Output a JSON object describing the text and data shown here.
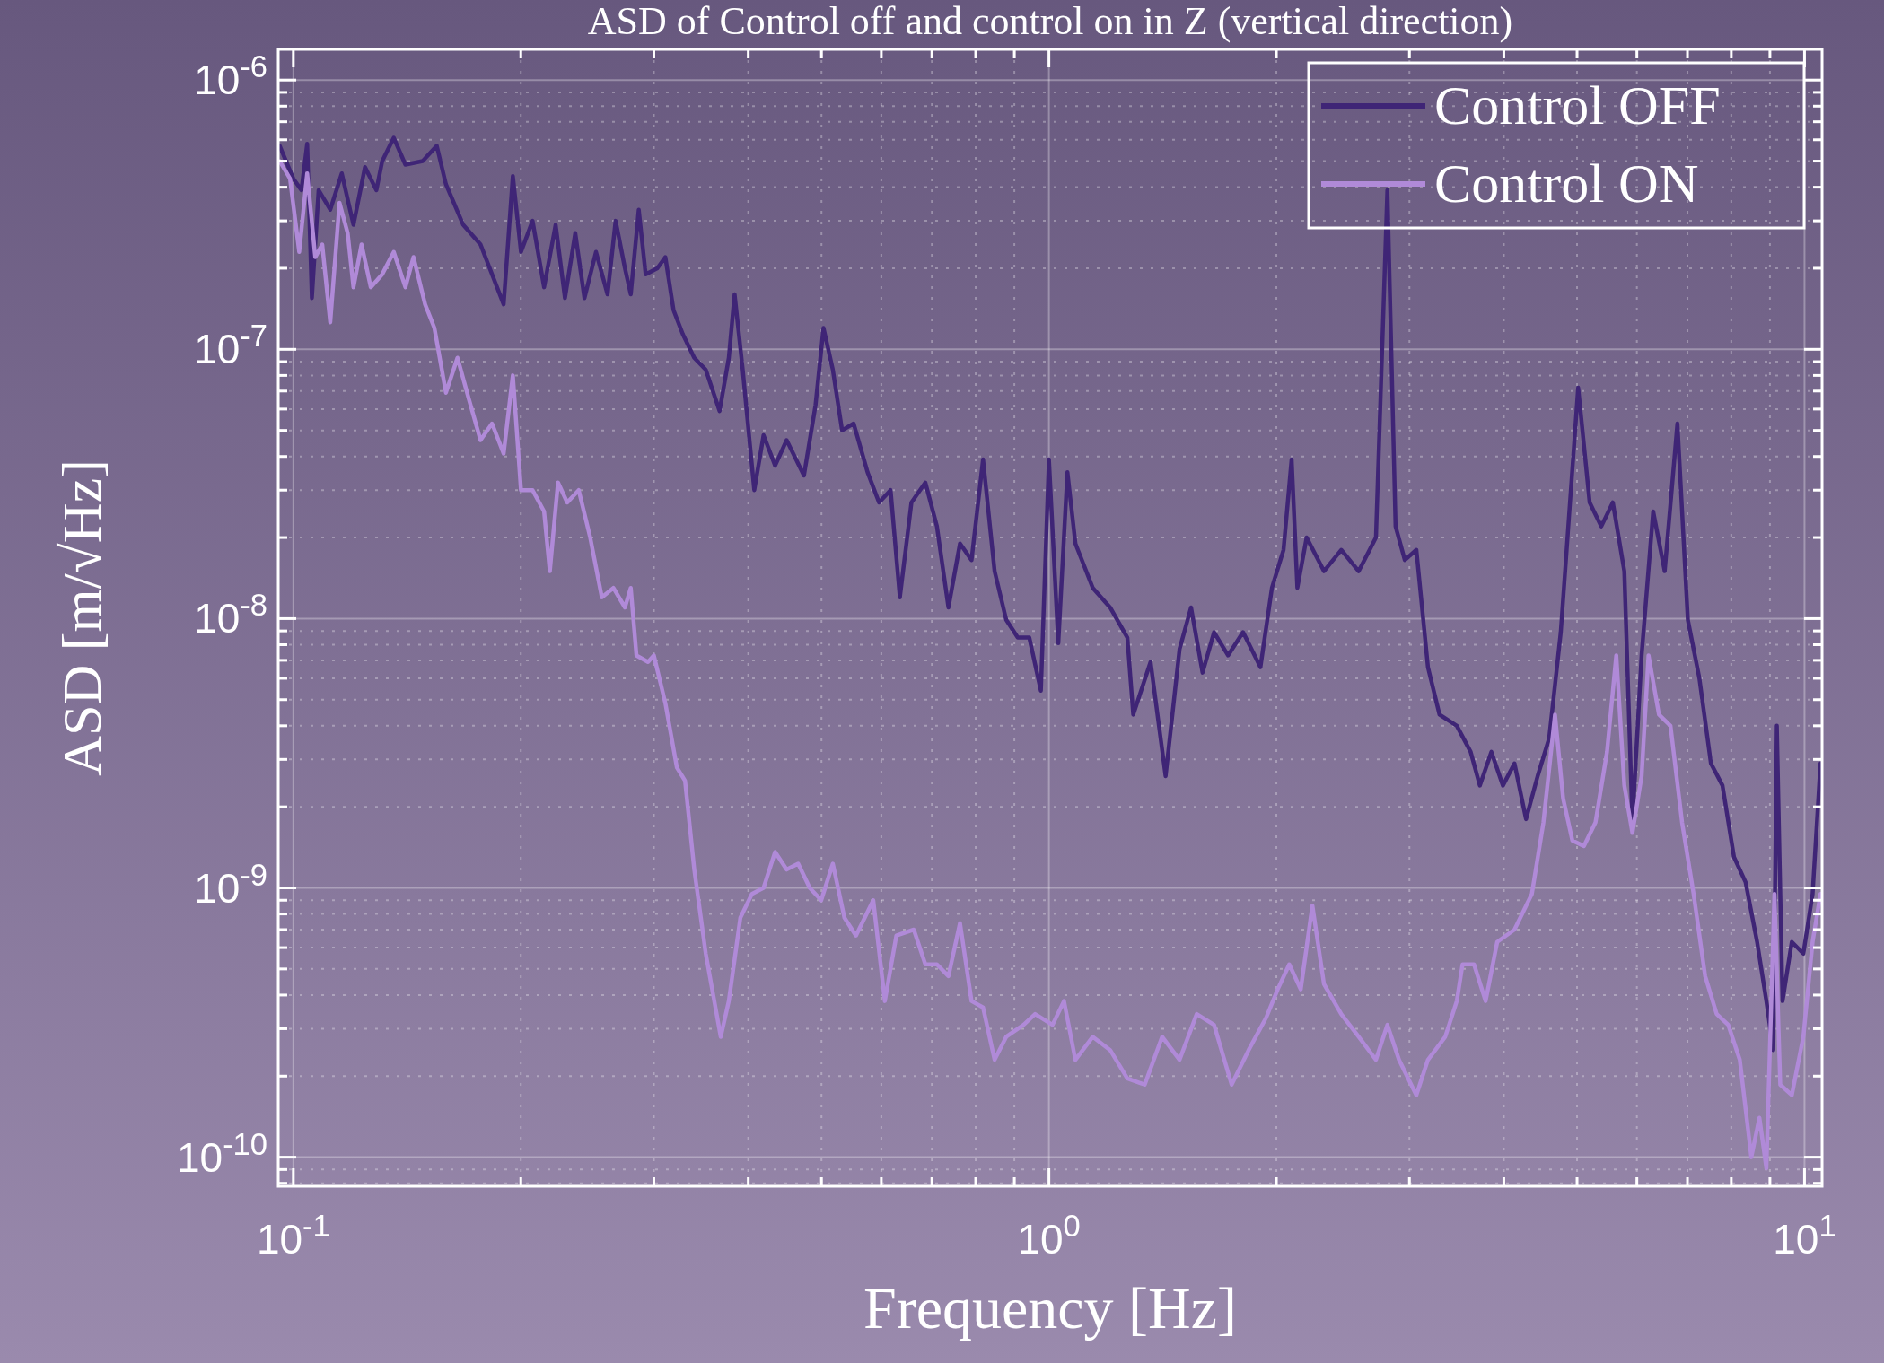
{
  "chart_data": {
    "type": "line",
    "title": "ASD of Control off and control on in Z (vertical direction)",
    "xlabel": "Frequency [Hz]",
    "ylabel": "ASD [m/√Hz]",
    "log": "xy",
    "grid": true,
    "legend": "top right",
    "line_style": "solid",
    "xlim": [
      0.0955,
      10.55
    ],
    "ylim": [
      7.8e-11,
      1.3e-06
    ],
    "xticks": [
      {
        "value": 0.1,
        "label": "10$^{-1}$"
      },
      {
        "value": 1,
        "label": "10$^{0}$"
      },
      {
        "value": 10,
        "label": "10$^{1}$"
      }
    ],
    "yticks": [
      {
        "value": 1e-10,
        "label": "10$^{-10}$"
      },
      {
        "value": 1e-09,
        "label": "10$^{-9}$"
      },
      {
        "value": 1e-08,
        "label": "10$^{-8}$"
      },
      {
        "value": 1e-07,
        "label": "10$^{-7}$"
      },
      {
        "value": 1e-06,
        "label": "10$^{-6}$"
      }
    ],
    "series": [
      {
        "name": "Control OFF",
        "color": "#3f2576",
        "x": [
          0.0959,
          0.1,
          0.1025,
          0.1043,
          0.1058,
          0.108,
          0.1119,
          0.1159,
          0.1201,
          0.1244,
          0.1288,
          0.1311,
          0.1358,
          0.1407,
          0.1483,
          0.1548,
          0.1592,
          0.1678,
          0.1769,
          0.1898,
          0.1952,
          0.2001,
          0.2073,
          0.2147,
          0.2224,
          0.2288,
          0.2361,
          0.2428,
          0.2515,
          0.2605,
          0.267,
          0.2747,
          0.2796,
          0.2865,
          0.2926,
          0.3032,
          0.3107,
          0.3185,
          0.3276,
          0.3393,
          0.3514,
          0.3665,
          0.377,
          0.3837,
          0.3933,
          0.4074,
          0.4191,
          0.4341,
          0.4496,
          0.474,
          0.491,
          0.5031,
          0.5176,
          0.5324,
          0.5515,
          0.5753,
          0.5959,
          0.6172,
          0.6349,
          0.6577,
          0.6862,
          0.7108,
          0.7362,
          0.7626,
          0.7899,
          0.8181,
          0.8474,
          0.8779,
          0.9094,
          0.9419,
          0.9757,
          1.0,
          1.029,
          1.058,
          1.084,
          1.143,
          1.205,
          1.27,
          1.293,
          1.363,
          1.427,
          1.489,
          1.542,
          1.597,
          1.654,
          1.726,
          1.807,
          1.905,
          1.973,
          2.044,
          2.095,
          2.132,
          2.193,
          2.312,
          2.437,
          2.57,
          2.709,
          2.805,
          2.876,
          2.958,
          3.064,
          3.174,
          3.288,
          3.466,
          3.615,
          3.718,
          3.851,
          3.989,
          4.132,
          4.28,
          4.434,
          4.593,
          4.758,
          5.017,
          5.196,
          5.383,
          5.576,
          5.775,
          5.919,
          6.087,
          6.306,
          6.531,
          6.789,
          7.008,
          7.259,
          7.519,
          7.788,
          8.067,
          8.356,
          8.655,
          8.903,
          9.093,
          9.191,
          9.352,
          9.62,
          9.965,
          10.25,
          10.5
        ],
        "values": [
          5.7e-07,
          4.3e-07,
          3.9e-07,
          5.8e-07,
          1.55e-07,
          3.9e-07,
          3.3e-07,
          4.5e-07,
          2.9e-07,
          4.75e-07,
          3.9e-07,
          5e-07,
          6.1e-07,
          4.85e-07,
          5e-07,
          5.7e-07,
          4.1e-07,
          2.9e-07,
          2.45e-07,
          1.47e-07,
          4.4e-07,
          2.3e-07,
          3e-07,
          1.7e-07,
          2.9e-07,
          1.55e-07,
          2.7e-07,
          1.55e-07,
          2.3e-07,
          1.6e-07,
          3e-07,
          2e-07,
          1.6e-07,
          3.3e-07,
          1.9e-07,
          2e-07,
          2.2e-07,
          1.4e-07,
          1.14e-07,
          9.3e-08,
          8.4e-08,
          5.9e-08,
          9.3e-08,
          1.6e-07,
          8.4e-08,
          3e-08,
          4.8e-08,
          3.7e-08,
          4.6e-08,
          3.4e-08,
          6.2e-08,
          1.2e-07,
          8.4e-08,
          5e-08,
          5.3e-08,
          3.5e-08,
          2.7e-08,
          3e-08,
          1.2e-08,
          2.7e-08,
          3.2e-08,
          2.2e-08,
          1.1e-08,
          1.9e-08,
          1.65e-08,
          3.9e-08,
          1.5e-08,
          9.9e-09,
          8.5e-09,
          8.5e-09,
          5.4e-09,
          3.9e-08,
          8.1e-09,
          3.5e-08,
          1.9e-08,
          1.3e-08,
          1.1e-08,
          8.5e-09,
          4.4e-09,
          6.9e-09,
          2.6e-09,
          7.7e-09,
          1.1e-08,
          6.3e-09,
          8.9e-09,
          7.3e-09,
          8.9e-09,
          6.6e-09,
          1.3e-08,
          1.8e-08,
          3.9e-08,
          1.3e-08,
          2e-08,
          1.5e-08,
          1.8e-08,
          1.5e-08,
          2e-08,
          3.9e-07,
          2.2e-08,
          1.65e-08,
          1.8e-08,
          6.6e-09,
          4.4e-09,
          4e-09,
          3.2e-09,
          2.4e-09,
          3.2e-09,
          2.4e-09,
          2.9e-09,
          1.8e-09,
          2.6e-09,
          3.6e-09,
          8.9e-09,
          7.2e-08,
          2.7e-08,
          2.2e-08,
          2.7e-08,
          1.5e-08,
          1.75e-09,
          7.3e-09,
          2.5e-08,
          1.5e-08,
          5.3e-08,
          9.9e-09,
          6e-09,
          2.9e-09,
          2.4e-09,
          1.3e-09,
          1.05e-09,
          6.3e-10,
          3.8e-10,
          2.5e-10,
          4e-09,
          3.8e-10,
          6.3e-10,
          5.7e-10,
          9.5e-10,
          2.9e-09
        ]
      },
      {
        "name": "Control ON",
        "color": "#b08ad8",
        "x": [
          0.0959,
          0.099,
          0.1018,
          0.1043,
          0.1069,
          0.1092,
          0.1119,
          0.1151,
          0.118,
          0.1201,
          0.1231,
          0.1266,
          0.1311,
          0.1358,
          0.1407,
          0.1442,
          0.1494,
          0.1537,
          0.1592,
          0.1649,
          0.1708,
          0.1769,
          0.1832,
          0.1898,
          0.1952,
          0.2001,
          0.2073,
          0.2147,
          0.2185,
          0.224,
          0.2304,
          0.2386,
          0.2471,
          0.256,
          0.2652,
          0.2747,
          0.2796,
          0.2845,
          0.2947,
          0.3,
          0.3107,
          0.3218,
          0.3299,
          0.3393,
          0.3514,
          0.3678,
          0.377,
          0.3905,
          0.4045,
          0.4191,
          0.4341,
          0.4496,
          0.4657,
          0.4824,
          0.4996,
          0.5176,
          0.5362,
          0.5554,
          0.5855,
          0.6065,
          0.6282,
          0.6624,
          0.6862,
          0.7108,
          0.7362,
          0.7626,
          0.7899,
          0.8181,
          0.8474,
          0.8779,
          0.9256,
          0.9587,
          1.011,
          1.047,
          1.084,
          1.143,
          1.205,
          1.27,
          1.339,
          1.412,
          1.489,
          1.569,
          1.654,
          1.745,
          1.838,
          1.939,
          2.008,
          2.08,
          2.154,
          2.232,
          2.312,
          2.437,
          2.57,
          2.709,
          2.805,
          2.906,
          3.064,
          3.174,
          3.346,
          3.466,
          3.527,
          3.653,
          3.784,
          3.92,
          4.132,
          4.357,
          4.513,
          4.675,
          4.792,
          4.929,
          5.105,
          5.289,
          5.478,
          5.635,
          5.775,
          5.919,
          6.087,
          6.217,
          6.418,
          6.647,
          6.886,
          7.132,
          7.388,
          7.652,
          7.926,
          8.21,
          8.504,
          8.716,
          8.903,
          9.125,
          9.288,
          9.62,
          9.965,
          10.25,
          10.5
        ],
        "values": [
          5e-07,
          4.3e-07,
          2.3e-07,
          4.5e-07,
          2.2e-07,
          2.45e-07,
          1.26e-07,
          3.5e-07,
          2.7e-07,
          1.7e-07,
          2.45e-07,
          1.7e-07,
          1.9e-07,
          2.3e-07,
          1.7e-07,
          2.2e-07,
          1.47e-07,
          1.2e-07,
          6.9e-08,
          9.3e-08,
          6.5e-08,
          4.6e-08,
          5.3e-08,
          4.1e-08,
          8e-08,
          3e-08,
          3e-08,
          2.5e-08,
          1.5e-08,
          3.2e-08,
          2.7e-08,
          3e-08,
          2e-08,
          1.2e-08,
          1.3e-08,
          1.1e-08,
          1.3e-08,
          7.3e-09,
          6.9e-09,
          7.3e-09,
          4.85e-09,
          2.8e-09,
          2.5e-09,
          1.17e-09,
          5.7e-10,
          2.8e-10,
          3.8e-10,
          7.75e-10,
          9.5e-10,
          1e-09,
          1.36e-09,
          1.17e-09,
          1.23e-09,
          1e-09,
          9e-10,
          1.23e-09,
          7.75e-10,
          6.65e-10,
          9e-10,
          3.8e-10,
          6.65e-10,
          7e-10,
          5.2e-10,
          5.2e-10,
          4.7e-10,
          7.4e-10,
          3.8e-10,
          3.6e-10,
          2.3e-10,
          2.8e-10,
          3.1e-10,
          3.4e-10,
          3.1e-10,
          3.8e-10,
          2.3e-10,
          2.8e-10,
          2.5e-10,
          1.96e-10,
          1.86e-10,
          2.8e-10,
          2.3e-10,
          3.4e-10,
          3.1e-10,
          1.86e-10,
          2.5e-10,
          3.3e-10,
          4.2e-10,
          5.2e-10,
          4.2e-10,
          8.6e-10,
          4.4e-10,
          3.4e-10,
          2.8e-10,
          2.3e-10,
          3.1e-10,
          2.3e-10,
          1.7e-10,
          2.3e-10,
          2.8e-10,
          3.8e-10,
          5.2e-10,
          5.2e-10,
          3.8e-10,
          6.3e-10,
          7e-10,
          9.5e-10,
          1.75e-09,
          4.4e-09,
          2.15e-09,
          1.5e-09,
          1.43e-09,
          1.75e-09,
          3.2e-09,
          7.3e-09,
          2.4e-09,
          1.6e-09,
          2.6e-09,
          7.3e-09,
          4.4e-09,
          4e-09,
          1.75e-09,
          9.5e-10,
          4.7e-10,
          3.4e-10,
          3.1e-10,
          2.3e-10,
          1e-10,
          1.4e-10,
          9.1e-11,
          9.5e-10,
          1.86e-10,
          1.7e-10,
          2.8e-10,
          6.3e-10,
          9.5e-10
        ]
      }
    ]
  }
}
